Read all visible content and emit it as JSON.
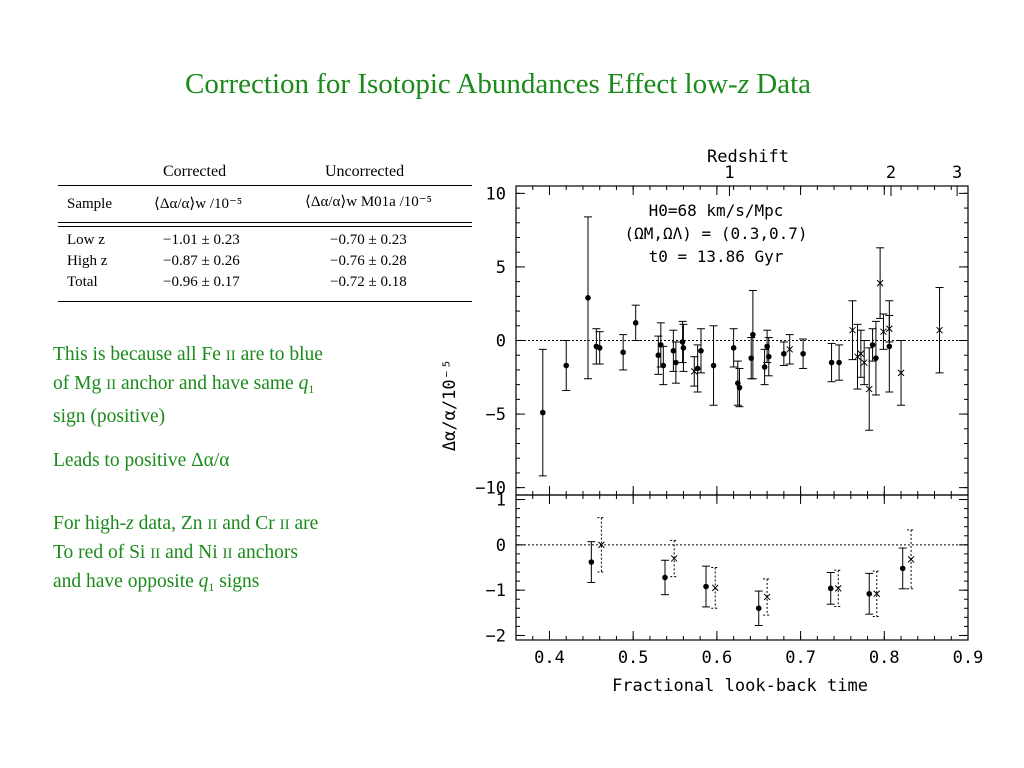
{
  "title": {
    "main": "Correction for Isotopic Abundances Effect low-",
    "var": "z",
    "tail": " Data"
  },
  "table": {
    "group_headers": [
      "Corrected",
      "Uncorrected"
    ],
    "col_sample": "Sample",
    "col_corr": "⟨Δα/α⟩w /10⁻⁵",
    "col_uncorr": "⟨Δα/α⟩w M01a /10⁻⁵",
    "rows": [
      {
        "label": "Low z",
        "corrected": "−1.01 ± 0.23",
        "uncorrected": "−0.70 ± 0.23"
      },
      {
        "label": "High z",
        "corrected": "−0.87 ± 0.26",
        "uncorrected": "−0.76 ± 0.28"
      },
      {
        "label": "Total",
        "corrected": "−0.96 ± 0.17",
        "uncorrected": "−0.72 ± 0.18"
      }
    ]
  },
  "notes": {
    "p1_a": "This is because all Fe ",
    "p1_b": "II",
    "p1_c": " are to blue",
    "p1_d": "of Mg ",
    "p1_e": "II",
    "p1_f": " anchor and have same ",
    "p1_g": "q",
    "p1_h": "1",
    "p1_i": "sign (positive)",
    "p2": "Leads to positive Δα/α",
    "p3_a": "For high-",
    "p3_b": "z",
    "p3_c": " data, Zn ",
    "p3_d": "II",
    "p3_e": " and Cr ",
    "p3_f": "II",
    "p3_g": " are",
    "p3_h": "To red of Si ",
    "p3_i": "II",
    "p3_j": " and Ni ",
    "p3_k": "II",
    "p3_l": " anchors",
    "p3_m": "and have opposite ",
    "p3_n": "q",
    "p3_o": "1",
    "p3_p": " signs"
  },
  "colors": {
    "title": "#1a8a1a",
    "text": "#1a8a1a",
    "plot": "#000000"
  },
  "chart_data": [
    {
      "type": "scatter",
      "title": "",
      "xlabel": "Fractional look-back time",
      "ylabel": "Δα/α/10⁻⁵",
      "xlim": [
        0.36,
        0.9
      ],
      "ylim": [
        -10.5,
        10.5
      ],
      "xticks": [
        "0.4",
        "0.5",
        "0.6",
        "0.7",
        "0.8",
        "0.9"
      ],
      "yticks": [
        "10",
        "5",
        "0",
        "−5",
        "−10"
      ],
      "top_axis": {
        "label": "Redshift",
        "ticks": [
          "1",
          "2",
          "3"
        ]
      },
      "annotation": {
        "l1": "H0=68 km/s/Mpc",
        "l2": "(ΩM,ΩΛ) = (0.3,0.7)",
        "l3": "t0 = 13.86 Gyr"
      },
      "series": [
        {
          "marker": "dot",
          "points": [
            [
              0.392,
              -4.9,
              4.3
            ],
            [
              0.42,
              -1.7,
              1.7
            ],
            [
              0.446,
              2.9,
              5.5
            ],
            [
              0.456,
              -0.4,
              1.2
            ],
            [
              0.46,
              -0.5,
              1.1
            ],
            [
              0.488,
              -0.8,
              1.2
            ],
            [
              0.503,
              1.2,
              1.2
            ],
            [
              0.53,
              -1.0,
              1.3
            ],
            [
              0.533,
              -0.3,
              1.5
            ],
            [
              0.536,
              -1.7,
              1.3
            ],
            [
              0.548,
              -0.7,
              1.4
            ],
            [
              0.551,
              -1.5,
              1.4
            ],
            [
              0.559,
              -0.1,
              1.4
            ],
            [
              0.56,
              -0.5,
              1.6
            ],
            [
              0.577,
              -1.9,
              1.6
            ],
            [
              0.581,
              -0.7,
              1.5
            ],
            [
              0.596,
              -1.7,
              2.7
            ],
            [
              0.62,
              -0.5,
              1.3
            ],
            [
              0.625,
              -2.9,
              1.5
            ],
            [
              0.627,
              -3.2,
              1.3
            ],
            [
              0.641,
              -1.2,
              1.4
            ],
            [
              0.643,
              0.4,
              3.0
            ],
            [
              0.657,
              -1.8,
              1.2
            ],
            [
              0.66,
              -0.4,
              1.1
            ],
            [
              0.662,
              -1.1,
              1.3
            ],
            [
              0.68,
              -0.9,
              0.8
            ],
            [
              0.703,
              -0.9,
              1.0
            ],
            [
              0.737,
              -1.5,
              1.3
            ],
            [
              0.746,
              -1.5,
              1.2
            ],
            [
              0.786,
              -0.3,
              1.1
            ],
            [
              0.79,
              -1.2,
              2.5
            ],
            [
              0.806,
              -0.4,
              3.1
            ]
          ]
        },
        {
          "marker": "cross",
          "points": [
            [
              0.573,
              -2.1,
              1.0
            ],
            [
              0.687,
              -0.6,
              1.0
            ],
            [
              0.762,
              0.7,
              2.0
            ],
            [
              0.768,
              -1.1,
              2.2
            ],
            [
              0.772,
              -0.9,
              1.6
            ],
            [
              0.776,
              -1.5,
              1.5
            ],
            [
              0.782,
              -3.3,
              2.8
            ],
            [
              0.795,
              3.9,
              2.4
            ],
            [
              0.799,
              0.6,
              1.2
            ],
            [
              0.806,
              0.8,
              0.9
            ],
            [
              0.82,
              -2.2,
              2.2
            ],
            [
              0.866,
              0.7,
              2.9
            ]
          ]
        }
      ]
    },
    {
      "type": "scatter",
      "xlabel": "Fractional look-back time",
      "ylabel": "",
      "xlim": [
        0.36,
        0.9
      ],
      "ylim": [
        -2.1,
        1.1
      ],
      "yticks": [
        "1",
        "0",
        "−1",
        "−2"
      ],
      "series": [
        {
          "marker": "dot",
          "points": [
            [
              0.45,
              -0.38,
              0.45
            ],
            [
              0.538,
              -0.72,
              0.38
            ],
            [
              0.587,
              -0.92,
              0.45
            ],
            [
              0.65,
              -1.4,
              0.38
            ],
            [
              0.736,
              -0.96,
              0.35
            ],
            [
              0.782,
              -1.08,
              0.45
            ],
            [
              0.822,
              -0.52,
              0.45
            ]
          ]
        },
        {
          "marker": "cross",
          "points": [
            [
              0.462,
              0.0,
              0.6
            ],
            [
              0.549,
              -0.3,
              0.4
            ],
            [
              0.598,
              -0.95,
              0.45
            ],
            [
              0.66,
              -1.15,
              0.4
            ],
            [
              0.745,
              -0.96,
              0.4
            ],
            [
              0.791,
              -1.08,
              0.5
            ],
            [
              0.832,
              -0.32,
              0.65
            ]
          ]
        }
      ]
    }
  ]
}
